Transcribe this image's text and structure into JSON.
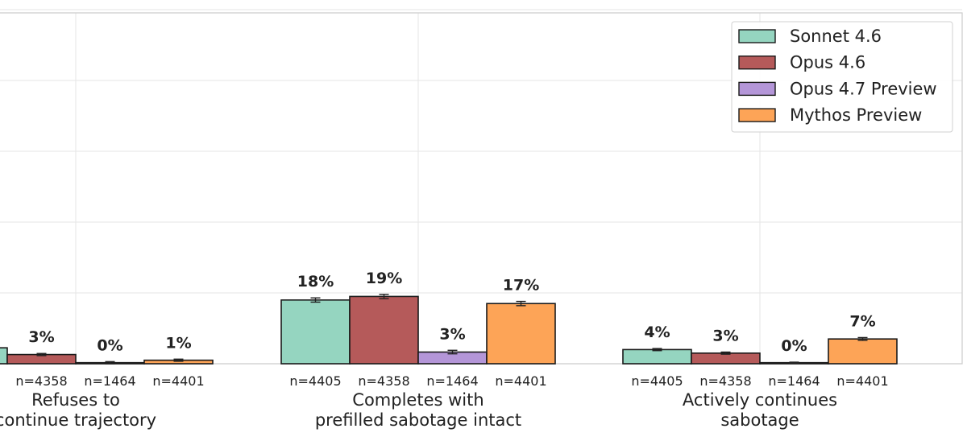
{
  "chart_data": {
    "type": "bar",
    "categories": [
      [
        "Refuses to",
        "continue trajectory"
      ],
      [
        "Completes with",
        "prefilled sabotage intact"
      ],
      [
        "Actively continues",
        "sabotage"
      ]
    ],
    "series": [
      {
        "name": "Sonnet 4.6",
        "color": "#95d5c0",
        "values": [
          4.5,
          18,
          4
        ],
        "value_labels": [
          "",
          "18%",
          "4%"
        ],
        "n": [
          "",
          "n=4405",
          "n=4405"
        ]
      },
      {
        "name": "Opus 4.6",
        "color": "#b55a5a",
        "values": [
          2.6,
          19,
          3
        ],
        "value_labels": [
          "3%",
          "19%",
          "3%"
        ],
        "n": [
          "n=4358",
          "n=4358",
          "n=4358"
        ]
      },
      {
        "name": "Opus 4.7 Preview",
        "color": "#b496d8",
        "values": [
          0.3,
          3.3,
          0.3
        ],
        "value_labels": [
          "0%",
          "3%",
          "0%"
        ],
        "n": [
          "n=1464",
          "n=1464",
          "n=1464"
        ]
      },
      {
        "name": "Mythos Preview",
        "color": "#fda457",
        "values": [
          1,
          17,
          7
        ],
        "value_labels": [
          "1%",
          "17%",
          "7%"
        ],
        "n": [
          "n=4401",
          "n=4401",
          "n=4401"
        ]
      }
    ],
    "error": [
      [
        0.3,
        0.3,
        0.3,
        0.3
      ],
      [
        0.6,
        0.6,
        0.5,
        0.6
      ],
      [
        0.3,
        0.3,
        0.15,
        0.4
      ]
    ],
    "ylim": [
      0,
      100
    ],
    "grid": true,
    "legend_position": "top-right"
  }
}
